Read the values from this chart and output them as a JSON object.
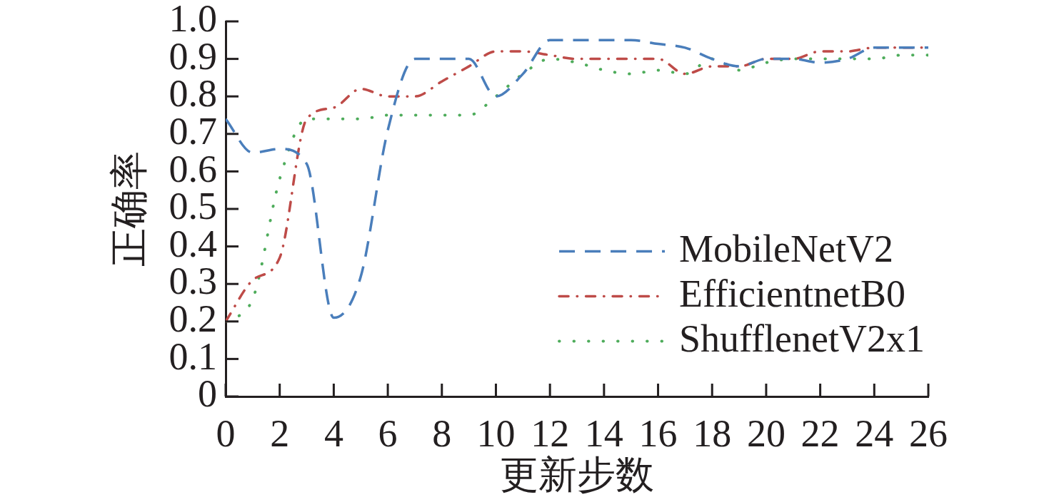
{
  "chart_data": {
    "type": "line",
    "xlabel": "更新步数",
    "ylabel": "正确率",
    "x": [
      0,
      1,
      2,
      3,
      4,
      5,
      6,
      7,
      8,
      9,
      10,
      11,
      12,
      13,
      14,
      15,
      16,
      17,
      18,
      19,
      20,
      21,
      22,
      23,
      24,
      25,
      26
    ],
    "series": [
      {
        "name": "MobileNetV2",
        "color": "#4a7ebb",
        "line_style": "dashed",
        "values": [
          0.74,
          0.65,
          0.66,
          0.62,
          0.21,
          0.32,
          0.71,
          0.9,
          0.9,
          0.9,
          0.8,
          0.86,
          0.95,
          0.95,
          0.95,
          0.95,
          0.94,
          0.93,
          0.9,
          0.88,
          0.9,
          0.9,
          0.89,
          0.9,
          0.93,
          0.93,
          0.93
        ]
      },
      {
        "name": "EfficientnetB0",
        "color": "#be4b48",
        "line_style": "dashdot",
        "values": [
          0.2,
          0.31,
          0.37,
          0.74,
          0.77,
          0.82,
          0.8,
          0.8,
          0.84,
          0.88,
          0.92,
          0.92,
          0.91,
          0.9,
          0.9,
          0.9,
          0.9,
          0.86,
          0.88,
          0.88,
          0.9,
          0.9,
          0.92,
          0.92,
          0.93,
          0.93,
          0.93
        ]
      },
      {
        "name": "ShufflenetV2x1",
        "color": "#4eac5b",
        "line_style": "dotted",
        "values": [
          0.2,
          0.26,
          0.58,
          0.74,
          0.74,
          0.74,
          0.75,
          0.75,
          0.75,
          0.75,
          0.8,
          0.86,
          0.9,
          0.89,
          0.87,
          0.86,
          0.87,
          0.86,
          0.9,
          0.87,
          0.89,
          0.9,
          0.9,
          0.9,
          0.9,
          0.91,
          0.91
        ]
      }
    ],
    "xlim": [
      0,
      26
    ],
    "xticks": [
      0,
      2,
      4,
      6,
      8,
      10,
      12,
      14,
      16,
      18,
      20,
      22,
      24,
      26
    ],
    "ylim": [
      0,
      1
    ],
    "yticks": [
      0,
      0.1,
      0.2,
      0.3,
      0.4,
      0.5,
      0.6,
      0.7,
      0.8,
      0.9,
      {
        "value": 1,
        "label": "1.0"
      }
    ],
    "grid": false,
    "legend": "bottom right",
    "marker": "none"
  }
}
